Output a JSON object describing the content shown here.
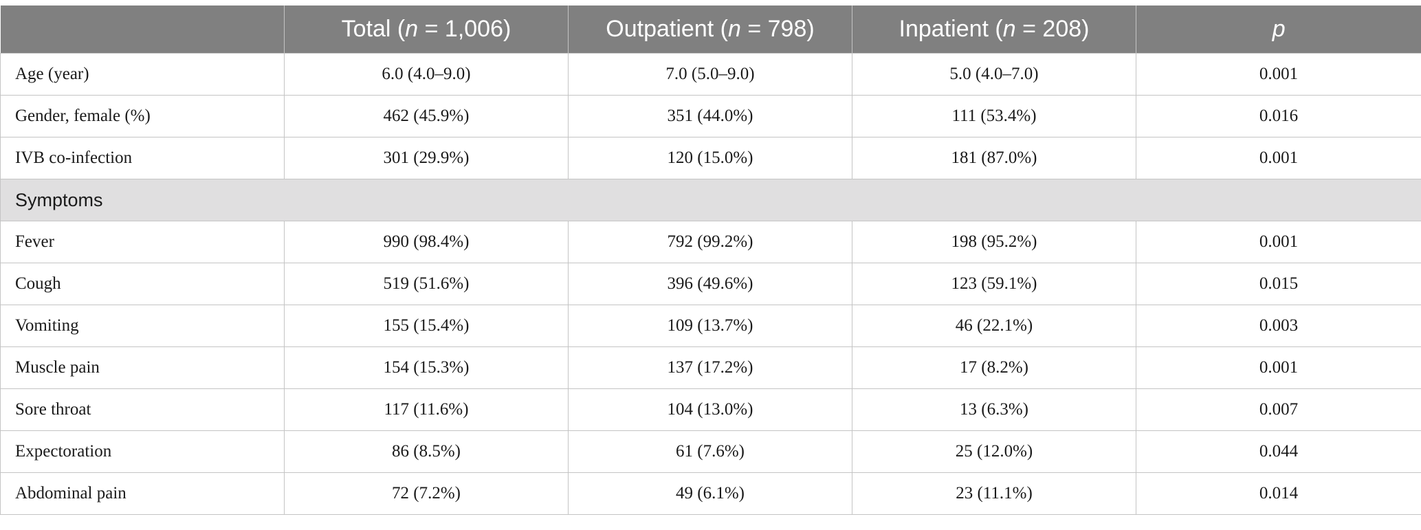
{
  "header": {
    "col0": "",
    "total_prefix": "Total (",
    "total_n": "n",
    "total_suffix": " = 1,006)",
    "outpatient_prefix": "Outpatient (",
    "outpatient_n": "n",
    "outpatient_suffix": " = 798)",
    "inpatient_prefix": "Inpatient (",
    "inpatient_n": "n",
    "inpatient_suffix": " = 208)",
    "p": "p"
  },
  "rows_top": [
    {
      "label": "Age (year)",
      "total": "6.0 (4.0–9.0)",
      "outpatient": "7.0 (5.0–9.0)",
      "inpatient": "5.0 (4.0–7.0)",
      "p": "0.001"
    },
    {
      "label": "Gender, female (%)",
      "total": "462 (45.9%)",
      "outpatient": "351 (44.0%)",
      "inpatient": "111 (53.4%)",
      "p": "0.016"
    },
    {
      "label": "IVB co-infection",
      "total": "301 (29.9%)",
      "outpatient": "120 (15.0%)",
      "inpatient": "181 (87.0%)",
      "p": "0.001"
    }
  ],
  "section_label": "Symptoms",
  "rows_symptoms": [
    {
      "label": "Fever",
      "total": "990 (98.4%)",
      "outpatient": "792 (99.2%)",
      "inpatient": "198 (95.2%)",
      "p": "0.001"
    },
    {
      "label": "Cough",
      "total": "519 (51.6%)",
      "outpatient": "396 (49.6%)",
      "inpatient": "123 (59.1%)",
      "p": "0.015"
    },
    {
      "label": "Vomiting",
      "total": "155 (15.4%)",
      "outpatient": "109 (13.7%)",
      "inpatient": "46 (22.1%)",
      "p": "0.003"
    },
    {
      "label": "Muscle pain",
      "total": "154 (15.3%)",
      "outpatient": "137 (17.2%)",
      "inpatient": "17 (8.2%)",
      "p": "0.001"
    },
    {
      "label": "Sore throat",
      "total": "117 (11.6%)",
      "outpatient": "104 (13.0%)",
      "inpatient": "13 (6.3%)",
      "p": "0.007"
    },
    {
      "label": "Expectoration",
      "total": "86 (8.5%)",
      "outpatient": "61 (7.6%)",
      "inpatient": "25 (12.0%)",
      "p": "0.044"
    },
    {
      "label": "Abdominal pain",
      "total": "72 (7.2%)",
      "outpatient": "49 (6.1%)",
      "inpatient": "23 (11.1%)",
      "p": "0.014"
    }
  ]
}
